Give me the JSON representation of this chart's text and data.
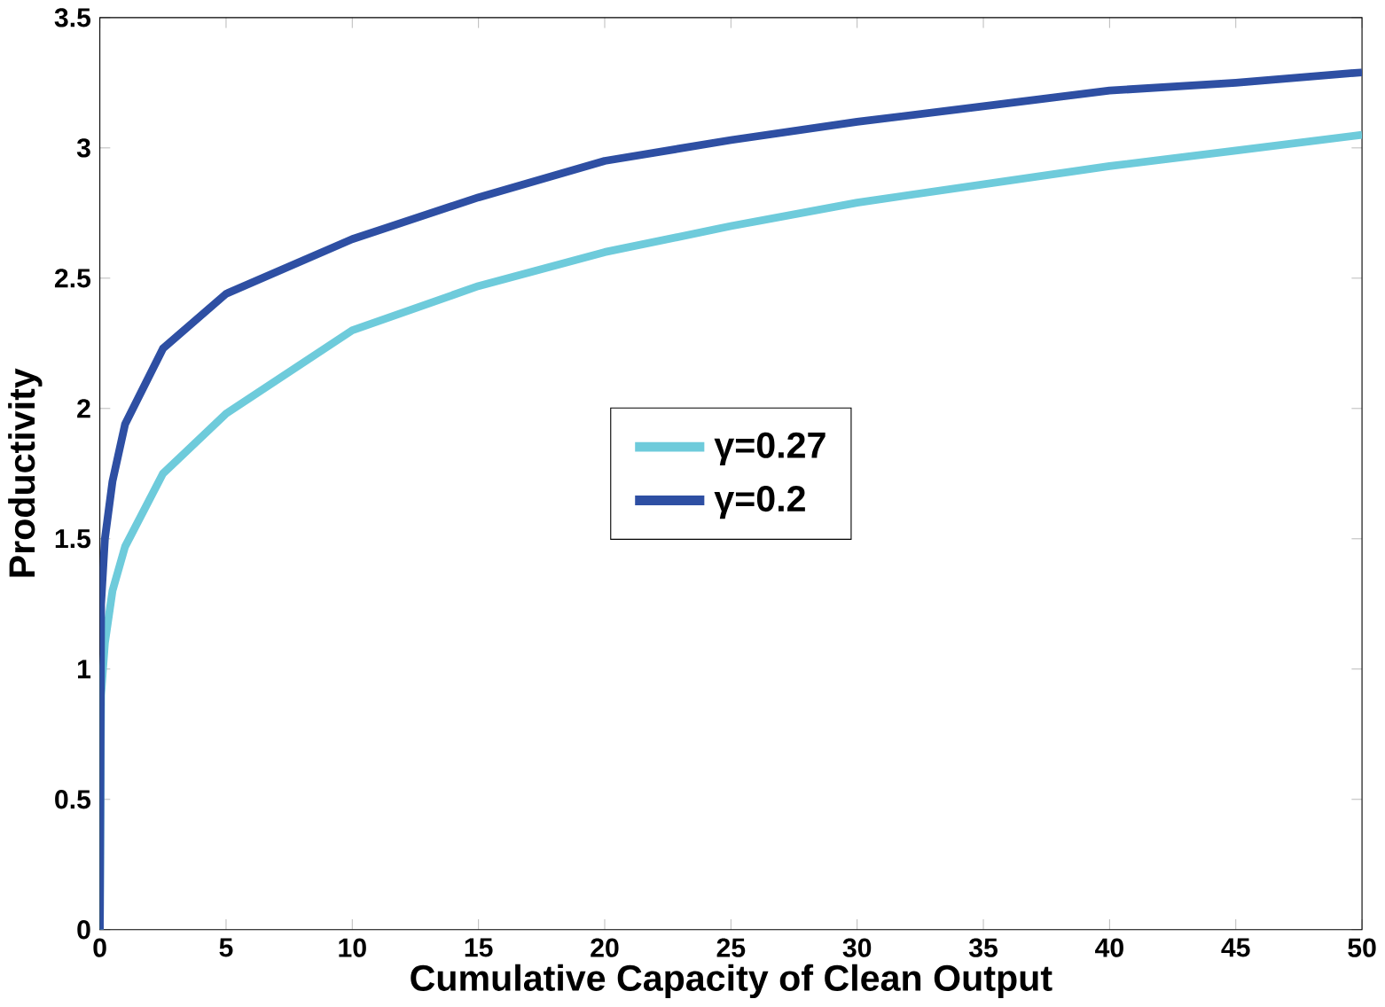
{
  "chart_data": {
    "type": "line",
    "xlabel": "Cumulative Capacity of Clean Output",
    "ylabel": "Productivity",
    "x": [
      0,
      0.05,
      0.2,
      0.5,
      1,
      2.5,
      5,
      10,
      15,
      20,
      25,
      30,
      35,
      40,
      45,
      50
    ],
    "series": [
      {
        "name": "γ=0.27",
        "color": "#6ecbdb",
        "values": [
          0,
          0.9,
          1.1,
          1.3,
          1.47,
          1.75,
          1.98,
          2.3,
          2.47,
          2.6,
          2.7,
          2.79,
          2.86,
          2.93,
          2.99,
          3.05
        ]
      },
      {
        "name": "γ=0.2",
        "color": "#2e4fa3",
        "values": [
          0,
          1.25,
          1.5,
          1.72,
          1.94,
          2.23,
          2.44,
          2.65,
          2.81,
          2.95,
          3.03,
          3.1,
          3.16,
          3.22,
          3.25,
          3.29
        ]
      }
    ],
    "xlim": [
      0,
      50
    ],
    "ylim": [
      0,
      3.5
    ],
    "xticks": [
      0,
      5,
      10,
      15,
      20,
      25,
      30,
      35,
      40,
      45,
      50
    ],
    "yticks": [
      0,
      0.5,
      1,
      1.5,
      2,
      2.5,
      3,
      3.5
    ],
    "legend": "center",
    "marker": "none",
    "line_style": "solid",
    "grid": false
  }
}
